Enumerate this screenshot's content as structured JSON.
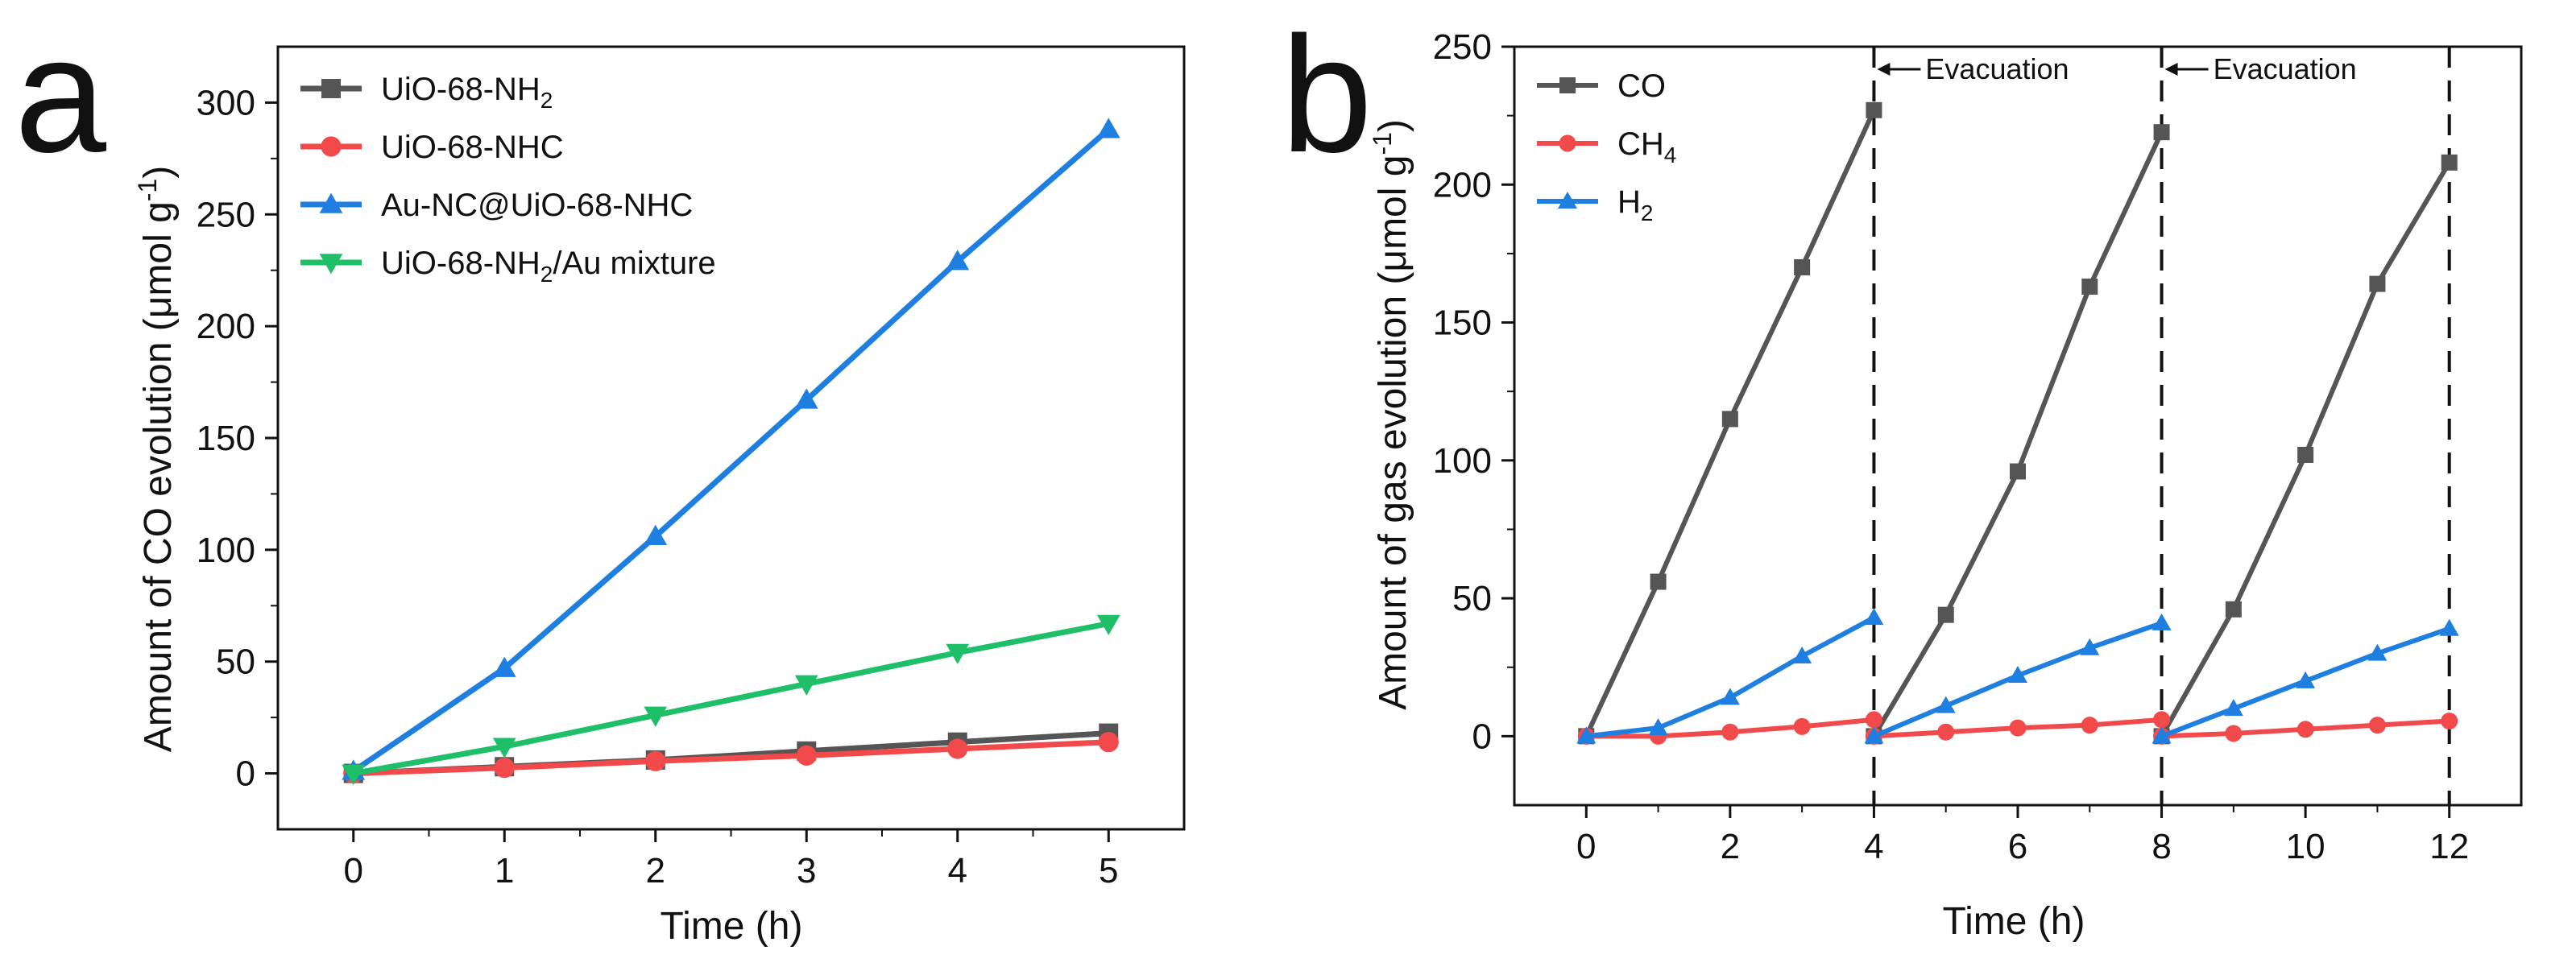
{
  "panels": [
    {
      "label": "a"
    },
    {
      "label": "b"
    }
  ],
  "chart_data": [
    {
      "type": "line",
      "panel": "a",
      "title": "",
      "xlabel": "Time (h)",
      "ylabel": {
        "main": "Amount of CO evolution (μmol g",
        "sup": "-1",
        "close": ")"
      },
      "xlim": [
        -0.5,
        5.5
      ],
      "ylim": [
        -25,
        325
      ],
      "xticks": [
        0,
        1,
        2,
        3,
        4,
        5
      ],
      "yticks": [
        0,
        50,
        100,
        150,
        200,
        250,
        300
      ],
      "grid": false,
      "legend_position": "top-left",
      "series": [
        {
          "name": "UiO-68-NH2",
          "label_base": "UiO-68-NH",
          "label_sub": "2",
          "label_tail": "",
          "color": "#555555",
          "marker": "square",
          "x": [
            0,
            1,
            2,
            3,
            4,
            5
          ],
          "values": [
            0,
            3,
            6,
            10,
            14,
            18
          ]
        },
        {
          "name": "UiO-68-NHC",
          "label_base": "UiO-68-NHC",
          "label_sub": "",
          "label_tail": "",
          "color": "#f24a4a",
          "marker": "circle",
          "x": [
            0,
            1,
            2,
            3,
            4,
            5
          ],
          "values": [
            0,
            2.5,
            5.5,
            8,
            11,
            14
          ]
        },
        {
          "name": "Au-NC@UiO-68-NHC",
          "label_base": "Au-NC@UiO-68-NHC",
          "label_sub": "",
          "label_tail": "",
          "color": "#1f7fe0",
          "marker": "triangle-up",
          "x": [
            0,
            1,
            2,
            3,
            4,
            5
          ],
          "values": [
            1,
            47,
            106,
            167,
            229,
            288
          ]
        },
        {
          "name": "UiO-68-NH2/Au mixture",
          "label_base": "UiO-68-NH",
          "label_sub": "2",
          "label_tail": "/Au mixture",
          "color": "#1fbf6a",
          "marker": "triangle-down",
          "x": [
            0,
            1,
            2,
            3,
            4,
            5
          ],
          "values": [
            0,
            12,
            26,
            40,
            54,
            67
          ]
        }
      ]
    },
    {
      "type": "line",
      "panel": "b",
      "title": "",
      "xlabel": "Time (h)",
      "ylabel": {
        "main": "Amount of gas evolution (μmol g",
        "sup": "-1",
        "close": ")"
      },
      "xlim": [
        -1,
        13
      ],
      "ylim": [
        -25,
        250
      ],
      "xticks": [
        0,
        2,
        4,
        6,
        8,
        10,
        12
      ],
      "yticks": [
        0,
        50,
        100,
        150,
        200,
        250
      ],
      "grid": false,
      "legend_position": "top-left",
      "series": [
        {
          "name": "CO",
          "label_base": "CO",
          "label_sub": "",
          "label_tail": "",
          "color": "#555555",
          "marker": "square",
          "segments": [
            {
              "x": [
                0,
                1,
                2,
                3,
                4
              ],
              "values": [
                0,
                56,
                115,
                170,
                227
              ]
            },
            {
              "x": [
                4,
                5,
                6,
                7,
                8
              ],
              "values": [
                0,
                44,
                96,
                163,
                219
              ]
            },
            {
              "x": [
                8,
                9,
                10,
                11,
                12
              ],
              "values": [
                0,
                46,
                102,
                164,
                208
              ]
            }
          ]
        },
        {
          "name": "CH4",
          "label_base": "CH",
          "label_sub": "4",
          "label_tail": "",
          "color": "#f24a4a",
          "marker": "circle",
          "segments": [
            {
              "x": [
                0,
                1,
                2,
                3,
                4
              ],
              "values": [
                0,
                0,
                1.5,
                3.5,
                6
              ]
            },
            {
              "x": [
                4,
                5,
                6,
                7,
                8
              ],
              "values": [
                0,
                1.5,
                3,
                4,
                6
              ]
            },
            {
              "x": [
                8,
                9,
                10,
                11,
                12
              ],
              "values": [
                0,
                1,
                2.5,
                4,
                5.5
              ]
            }
          ]
        },
        {
          "name": "H2",
          "label_base": "H",
          "label_sub": "2",
          "label_tail": "",
          "color": "#1f7fe0",
          "marker": "triangle-up",
          "segments": [
            {
              "x": [
                0,
                1,
                2,
                3,
                4
              ],
              "values": [
                0,
                3,
                14,
                29,
                43
              ]
            },
            {
              "x": [
                4,
                5,
                6,
                7,
                8
              ],
              "values": [
                0,
                11,
                22,
                32,
                41
              ]
            },
            {
              "x": [
                8,
                9,
                10,
                11,
                12
              ],
              "values": [
                0,
                10,
                20,
                30,
                39
              ]
            }
          ]
        }
      ],
      "vertical_lines": [
        4,
        8,
        12
      ],
      "annotations": [
        {
          "text": "Evacuation",
          "x": 4
        },
        {
          "text": "Evacuation",
          "x": 8
        }
      ]
    }
  ]
}
